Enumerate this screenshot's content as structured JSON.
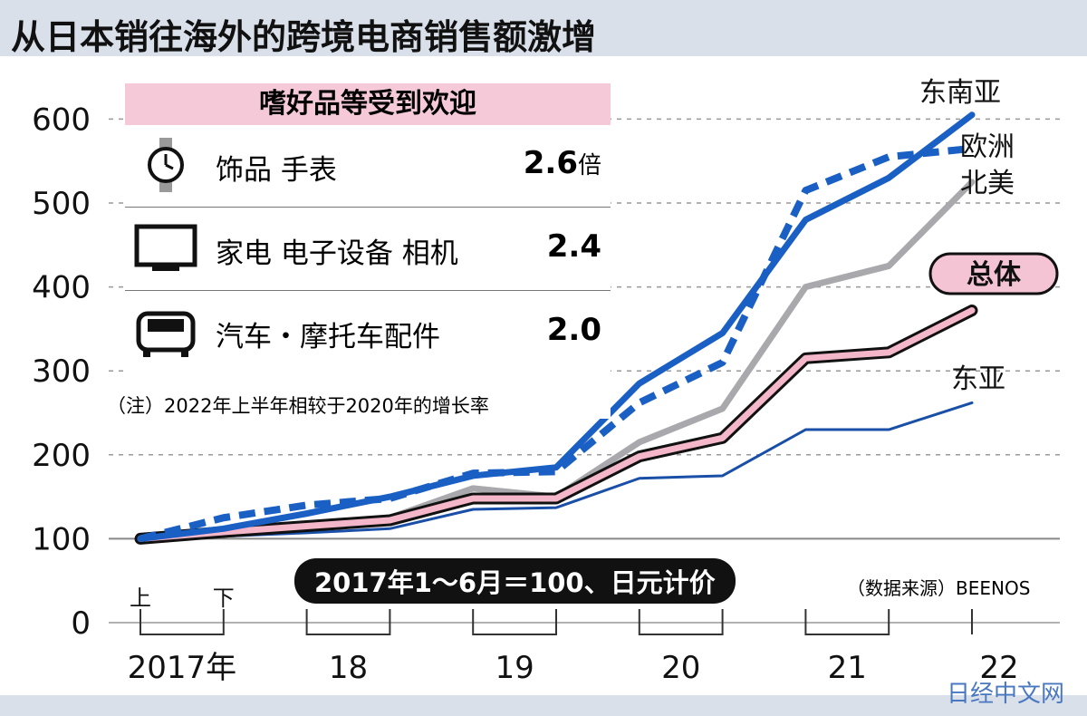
{
  "title": "从日本销往海外的跨境电商销售额激增",
  "inset": {
    "heading": "嗜好品等受到欢迎",
    "items": [
      {
        "icon": "watch-icon",
        "label": "饰品  手表",
        "value": "2.6",
        "unit": "倍"
      },
      {
        "icon": "tv-icon",
        "label": "家电  电子设备  相机",
        "value": "2.4",
        "unit": ""
      },
      {
        "icon": "car-icon",
        "label": "汽车・摩托车配件",
        "value": "2.0",
        "unit": ""
      }
    ],
    "note": "（注）2022年上半年相较于2020年的增长率"
  },
  "base_note": "2017年1～6月＝100、日元计价",
  "source": "（数据来源）BEENOS",
  "watermark": "日经中文网",
  "chart_data": {
    "type": "line",
    "title": "从日本销往海外的跨境电商销售额激增",
    "x": [
      "2017上",
      "2017下",
      "2018上",
      "2018下",
      "2019上",
      "2019下",
      "2020上",
      "2020下",
      "2021上",
      "2021下",
      "2022上"
    ],
    "half_labels": [
      "上",
      "下"
    ],
    "year_labels": [
      "2017年",
      "18",
      "19",
      "20",
      "21",
      "22"
    ],
    "ylim": [
      0,
      650
    ],
    "yticks": [
      0,
      100,
      200,
      300,
      400,
      500,
      600
    ],
    "grid": true,
    "series": [
      {
        "name": "东南亚",
        "color": "#1a5fc4",
        "style": "solid",
        "values": [
          100,
          112,
          130,
          150,
          175,
          185,
          285,
          345,
          480,
          530,
          605
        ]
      },
      {
        "name": "欧洲",
        "color": "#1a5fc4",
        "style": "dashed",
        "values": [
          100,
          125,
          140,
          148,
          178,
          180,
          262,
          310,
          515,
          555,
          565
        ]
      },
      {
        "name": "北美",
        "color": "#a9a9ad",
        "style": "solid",
        "values": [
          100,
          108,
          115,
          125,
          160,
          150,
          215,
          255,
          400,
          425,
          525
        ]
      },
      {
        "name": "总体",
        "color": "#f4b6c9",
        "style": "outlined",
        "values": [
          100,
          108,
          115,
          122,
          148,
          148,
          198,
          220,
          315,
          322,
          372
        ]
      },
      {
        "name": "东亚",
        "color": "#1a4fa8",
        "style": "thin",
        "values": [
          100,
          103,
          107,
          112,
          135,
          137,
          172,
          175,
          230,
          230,
          262
        ]
      }
    ]
  }
}
